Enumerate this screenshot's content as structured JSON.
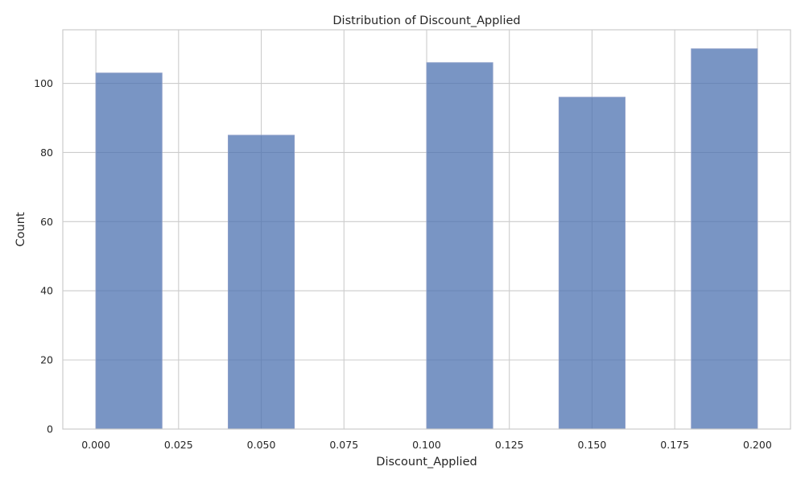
{
  "chart_data": {
    "type": "bar",
    "title": "Distribution of Discount_Applied",
    "xlabel": "Discount_Applied",
    "ylabel": "Count",
    "bins": [
      {
        "x0": 0.0,
        "x1": 0.02,
        "count": 103
      },
      {
        "x0": 0.02,
        "x1": 0.04,
        "count": 0
      },
      {
        "x0": 0.04,
        "x1": 0.06,
        "count": 85
      },
      {
        "x0": 0.06,
        "x1": 0.08,
        "count": 0
      },
      {
        "x0": 0.08,
        "x1": 0.1,
        "count": 0
      },
      {
        "x0": 0.1,
        "x1": 0.12,
        "count": 106
      },
      {
        "x0": 0.12,
        "x1": 0.14,
        "count": 0
      },
      {
        "x0": 0.14,
        "x1": 0.16,
        "count": 96
      },
      {
        "x0": 0.16,
        "x1": 0.18,
        "count": 0
      },
      {
        "x0": 0.18,
        "x1": 0.2,
        "count": 110
      }
    ],
    "xlim": [
      -0.01,
      0.21
    ],
    "ylim": [
      0,
      115.5
    ],
    "xticks": [
      "0.000",
      "0.025",
      "0.050",
      "0.075",
      "0.100",
      "0.125",
      "0.150",
      "0.175",
      "0.200"
    ],
    "yticks": [
      "0",
      "20",
      "40",
      "60",
      "80",
      "100"
    ],
    "grid": true,
    "colors": {
      "bar": "#4c72b0",
      "grid": "#cccccc",
      "text": "#262626"
    }
  }
}
